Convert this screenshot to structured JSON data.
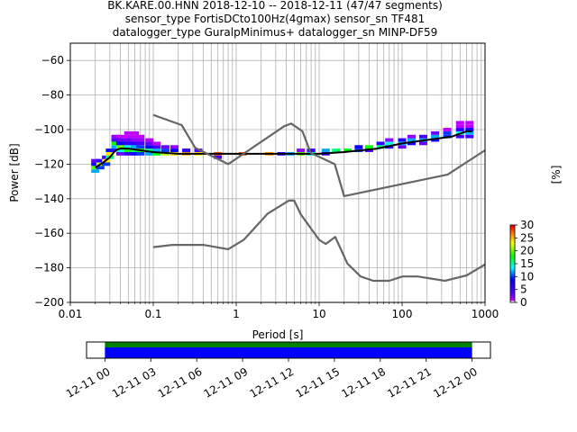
{
  "title": {
    "line1": "BK.KARE.00.HNN   2018-12-10 -- 2018-12-11  (47/47 segments)",
    "line2": "sensor_type FortisDCto100Hz(4gmax) sensor_sn TF481",
    "line3": "datalogger_type GuralpMinimus+ datalogger_sn MINP-DF59"
  },
  "chart_data": [
    {
      "type": "heatmap",
      "xlabel": "Period [s]",
      "ylabel": "Power [dB]",
      "xscale": "log",
      "xlim": [
        0.01,
        1000
      ],
      "ylim": [
        -200,
        -50
      ],
      "grid": true,
      "x_ticks": [
        0.01,
        0.1,
        1,
        10,
        100,
        1000
      ],
      "x_tick_labels": [
        "0.01",
        "0.1",
        "1",
        "10",
        "100",
        "1000"
      ],
      "y_ticks": [
        -200,
        -180,
        -160,
        -140,
        -120,
        -100,
        -80,
        -60
      ],
      "y_tick_labels": [
        "−200",
        "−180",
        "−160",
        "−140",
        "−120",
        "−100",
        "−80",
        "−60"
      ],
      "colormap": "pqlx",
      "colorbar": {
        "label": "[%]",
        "ticks": [
          0,
          5,
          10,
          15,
          20,
          25,
          30
        ],
        "tick_labels": [
          "0",
          "5",
          "10",
          "15",
          "20",
          "25",
          "30"
        ],
        "range": [
          0,
          30
        ]
      },
      "heatmap_cells": [
        {
          "period": 0.02,
          "db": -124,
          "pct": 12
        },
        {
          "period": 0.02,
          "db": -122,
          "pct": 20
        },
        {
          "period": 0.02,
          "db": -120,
          "pct": 8
        },
        {
          "period": 0.02,
          "db": -118,
          "pct": 3
        },
        {
          "period": 0.023,
          "db": -122,
          "pct": 10
        },
        {
          "period": 0.023,
          "db": -120,
          "pct": 22
        },
        {
          "period": 0.023,
          "db": -118,
          "pct": 6
        },
        {
          "period": 0.027,
          "db": -120,
          "pct": 10
        },
        {
          "period": 0.027,
          "db": -118,
          "pct": 24
        },
        {
          "period": 0.027,
          "db": -116,
          "pct": 5
        },
        {
          "period": 0.03,
          "db": -116,
          "pct": 16
        },
        {
          "period": 0.03,
          "db": -114,
          "pct": 24
        },
        {
          "period": 0.03,
          "db": -112,
          "pct": 8
        },
        {
          "period": 0.035,
          "db": -112,
          "pct": 5
        },
        {
          "period": 0.035,
          "db": -110,
          "pct": 12
        },
        {
          "period": 0.035,
          "db": -108,
          "pct": 18
        },
        {
          "period": 0.035,
          "db": -106,
          "pct": 4
        },
        {
          "period": 0.035,
          "db": -104,
          "pct": 2
        },
        {
          "period": 0.04,
          "db": -114,
          "pct": 3
        },
        {
          "period": 0.04,
          "db": -112,
          "pct": 14
        },
        {
          "period": 0.04,
          "db": -110,
          "pct": 20
        },
        {
          "period": 0.04,
          "db": -108,
          "pct": 8
        },
        {
          "period": 0.04,
          "db": -106,
          "pct": 3
        },
        {
          "period": 0.04,
          "db": -104,
          "pct": 1
        },
        {
          "period": 0.05,
          "db": -114,
          "pct": 6
        },
        {
          "period": 0.05,
          "db": -112,
          "pct": 18
        },
        {
          "period": 0.05,
          "db": -110,
          "pct": 14
        },
        {
          "period": 0.05,
          "db": -108,
          "pct": 6
        },
        {
          "period": 0.05,
          "db": -106,
          "pct": 3
        },
        {
          "period": 0.05,
          "db": -104,
          "pct": 1
        },
        {
          "period": 0.05,
          "db": -102,
          "pct": 1
        },
        {
          "period": 0.06,
          "db": -114,
          "pct": 8
        },
        {
          "period": 0.06,
          "db": -112,
          "pct": 16
        },
        {
          "period": 0.06,
          "db": -110,
          "pct": 12
        },
        {
          "period": 0.06,
          "db": -108,
          "pct": 6
        },
        {
          "period": 0.06,
          "db": -106,
          "pct": 2
        },
        {
          "period": 0.06,
          "db": -104,
          "pct": 1
        },
        {
          "period": 0.06,
          "db": -102,
          "pct": 1
        },
        {
          "period": 0.07,
          "db": -114,
          "pct": 10
        },
        {
          "period": 0.07,
          "db": -112,
          "pct": 18
        },
        {
          "period": 0.07,
          "db": -110,
          "pct": 10
        },
        {
          "period": 0.07,
          "db": -108,
          "pct": 4
        },
        {
          "period": 0.07,
          "db": -106,
          "pct": 2
        },
        {
          "period": 0.07,
          "db": -104,
          "pct": 1
        },
        {
          "period": 0.09,
          "db": -114,
          "pct": 12
        },
        {
          "period": 0.09,
          "db": -112,
          "pct": 16
        },
        {
          "period": 0.09,
          "db": -110,
          "pct": 8
        },
        {
          "period": 0.09,
          "db": -108,
          "pct": 3
        },
        {
          "period": 0.09,
          "db": -106,
          "pct": 1
        },
        {
          "period": 0.11,
          "db": -114,
          "pct": 18
        },
        {
          "period": 0.11,
          "db": -112,
          "pct": 12
        },
        {
          "period": 0.11,
          "db": -110,
          "pct": 4
        },
        {
          "period": 0.11,
          "db": -108,
          "pct": 1
        },
        {
          "period": 0.14,
          "db": -114,
          "pct": 22
        },
        {
          "period": 0.14,
          "db": -112,
          "pct": 10
        },
        {
          "period": 0.14,
          "db": -110,
          "pct": 3
        },
        {
          "period": 0.18,
          "db": -114,
          "pct": 24
        },
        {
          "period": 0.18,
          "db": -112,
          "pct": 8
        },
        {
          "period": 0.18,
          "db": -110,
          "pct": 2
        },
        {
          "period": 0.25,
          "db": -114,
          "pct": 26
        },
        {
          "period": 0.25,
          "db": -112,
          "pct": 6
        },
        {
          "period": 0.35,
          "db": -114,
          "pct": 24
        },
        {
          "period": 0.35,
          "db": -112,
          "pct": 4
        },
        {
          "period": 0.6,
          "db": -114,
          "pct": 28
        },
        {
          "period": 0.6,
          "db": -116,
          "pct": 4
        },
        {
          "period": 1.2,
          "db": -114,
          "pct": 28
        },
        {
          "period": 2.5,
          "db": -114,
          "pct": 26
        },
        {
          "period": 3.5,
          "db": -114,
          "pct": 6
        },
        {
          "period": 4.5,
          "db": -114,
          "pct": 12
        },
        {
          "period": 6,
          "db": -114,
          "pct": 20
        },
        {
          "period": 6,
          "db": -112,
          "pct": 2
        },
        {
          "period": 8,
          "db": -114,
          "pct": 14
        },
        {
          "period": 8,
          "db": -112,
          "pct": 6
        },
        {
          "period": 12,
          "db": -114,
          "pct": 4
        },
        {
          "period": 12,
          "db": -112,
          "pct": 12
        },
        {
          "period": 16,
          "db": -112,
          "pct": 16
        },
        {
          "period": 22,
          "db": -112,
          "pct": 18
        },
        {
          "period": 30,
          "db": -112,
          "pct": 10
        },
        {
          "period": 30,
          "db": -110,
          "pct": 8
        },
        {
          "period": 40,
          "db": -112,
          "pct": 4
        },
        {
          "period": 40,
          "db": -110,
          "pct": 18
        },
        {
          "period": 55,
          "db": -110,
          "pct": 16
        },
        {
          "period": 55,
          "db": -108,
          "pct": 6
        },
        {
          "period": 70,
          "db": -110,
          "pct": 6
        },
        {
          "period": 70,
          "db": -108,
          "pct": 14
        },
        {
          "period": 70,
          "db": -106,
          "pct": 2
        },
        {
          "period": 100,
          "db": -110,
          "pct": 3
        },
        {
          "period": 100,
          "db": -108,
          "pct": 12
        },
        {
          "period": 100,
          "db": -106,
          "pct": 6
        },
        {
          "period": 130,
          "db": -108,
          "pct": 8
        },
        {
          "period": 130,
          "db": -106,
          "pct": 12
        },
        {
          "period": 130,
          "db": -104,
          "pct": 2
        },
        {
          "period": 180,
          "db": -108,
          "pct": 3
        },
        {
          "period": 180,
          "db": -106,
          "pct": 12
        },
        {
          "period": 180,
          "db": -104,
          "pct": 4
        },
        {
          "period": 250,
          "db": -106,
          "pct": 8
        },
        {
          "period": 250,
          "db": -104,
          "pct": 12
        },
        {
          "period": 250,
          "db": -102,
          "pct": 3
        },
        {
          "period": 350,
          "db": -104,
          "pct": 10
        },
        {
          "period": 350,
          "db": -102,
          "pct": 10
        },
        {
          "period": 350,
          "db": -100,
          "pct": 1
        },
        {
          "period": 500,
          "db": -104,
          "pct": 4
        },
        {
          "period": 500,
          "db": -102,
          "pct": 14
        },
        {
          "period": 500,
          "db": -100,
          "pct": 6
        },
        {
          "period": 500,
          "db": -98,
          "pct": 1
        },
        {
          "period": 500,
          "db": -96,
          "pct": 1
        },
        {
          "period": 650,
          "db": -104,
          "pct": 4
        },
        {
          "period": 650,
          "db": -102,
          "pct": 12
        },
        {
          "period": 650,
          "db": -100,
          "pct": 8
        },
        {
          "period": 650,
          "db": -98,
          "pct": 1
        },
        {
          "period": 650,
          "db": -96,
          "pct": 1
        }
      ],
      "series": [
        {
          "style": "black-median",
          "x": [
            0.02,
            0.025,
            0.03,
            0.035,
            0.04,
            0.05,
            0.07,
            0.1,
            0.2,
            0.4,
            1,
            3,
            5,
            10,
            20,
            50,
            100,
            200,
            400,
            600,
            700
          ],
          "y": [
            -122,
            -119,
            -116,
            -112,
            -111,
            -111,
            -112,
            -113,
            -114,
            -114,
            -114,
            -114,
            -114,
            -114,
            -113,
            -111,
            -108,
            -106,
            -104,
            -101,
            -101
          ]
        },
        {
          "style": "gray-new-high-noise-model",
          "x": [
            0.1,
            0.22,
            0.32,
            0.8,
            3.8,
            4.6,
            6.3,
            7.9,
            15.4,
            20,
            354.8,
            1000
          ],
          "y": [
            -91.5,
            -97.4,
            -110.5,
            -120,
            -98,
            -96.5,
            -101,
            -113.5,
            -120,
            -138.5,
            -126,
            -112
          ]
        },
        {
          "style": "gray-new-low-noise-model",
          "x": [
            0.1,
            0.17,
            0.4,
            0.8,
            1.24,
            2.4,
            4.3,
            5,
            6,
            10,
            12,
            15.6,
            21.9,
            31.6,
            45,
            70,
            101,
            154,
            328,
            600,
            1000
          ],
          "y": [
            -168,
            -166.7,
            -166.7,
            -169.2,
            -163.7,
            -148.6,
            -141.1,
            -141.1,
            -149,
            -163.8,
            -166.2,
            -162.1,
            -177.5,
            -185,
            -187.5,
            -187.5,
            -185,
            -185,
            -187.5,
            -184.4,
            -178
          ]
        }
      ]
    },
    {
      "type": "bar",
      "description_free": true,
      "x_tick_labels": [
        "12-11 00",
        "12-11 03",
        "12-11 06",
        "12-11 09",
        "12-11 12",
        "12-11 15",
        "12-11 18",
        "12-11 21",
        "12-12 00"
      ],
      "x_ticks_hours": [
        0,
        3,
        6,
        9,
        12,
        15,
        18,
        21,
        24
      ],
      "xlim_hours": [
        -1.2,
        25.2
      ],
      "bars": [
        {
          "color": "#008000",
          "start_hours": 0,
          "end_hours": 24
        },
        {
          "color": "#0000ff",
          "start_hours": 0,
          "end_hours": 24
        }
      ]
    }
  ]
}
